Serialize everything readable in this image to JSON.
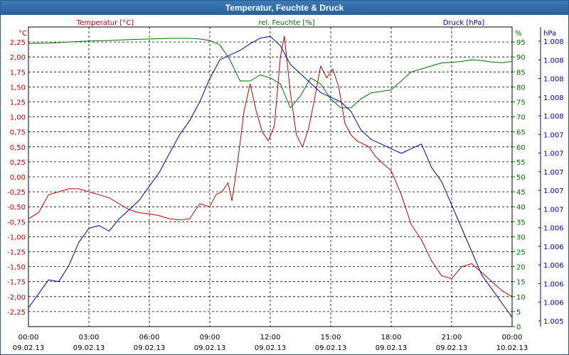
{
  "window": {
    "title": "Temperatur, Feuchte & Druck"
  },
  "colors": {
    "temperature": "#c00000",
    "humidity": "#007000",
    "pressure": "#0000b0",
    "grid": "#000000",
    "axis": "#000000"
  },
  "chart_data": {
    "type": "line",
    "title": "Temperatur, Feuchte & Druck",
    "grid": true,
    "x": {
      "tick_times": [
        "00:00",
        "03:00",
        "06:00",
        "09:00",
        "12:00",
        "15:00",
        "18:00",
        "21:00",
        "00:00"
      ],
      "tick_dates": [
        "09.02.13",
        "09.02.13",
        "09.02.13",
        "09.02.13",
        "09.02.13",
        "09.02.13",
        "09.02.13",
        "09.02.13",
        "10.02.13"
      ],
      "range_hours": [
        0,
        24
      ]
    },
    "axes": {
      "temperature": {
        "label": "Temperatur [°C]",
        "unit": "°C",
        "range": [
          -2.5,
          2.5
        ],
        "ticks": [
          "2,25",
          "2,00",
          "1,75",
          "1,50",
          "1,25",
          "1,00",
          "0,75",
          "0,50",
          "0,25",
          "0,00",
          "-0,25",
          "-0,50",
          "-0,75",
          "-1,00",
          "-1,25",
          "-1,50",
          "-1,75",
          "-2,00",
          "-2,25"
        ]
      },
      "humidity": {
        "label": "rel. Feuchte [%]",
        "unit": "%",
        "range": [
          0,
          100
        ],
        "ticks": [
          "95",
          "90",
          "85",
          "80",
          "75",
          "70",
          "65",
          "60",
          "55",
          "50",
          "45",
          "40",
          "35",
          "30",
          "25",
          "20",
          "15",
          "10",
          "5",
          "0"
        ]
      },
      "pressure": {
        "label": "Druck [hPa]",
        "unit": "hPa",
        "range": [
          1004.9,
          1008.1
        ],
        "ticks": [
          "1.008",
          "1.008",
          "1.008",
          "1.008",
          "1.008",
          "1.007",
          "1.007",
          "1.007",
          "1.007",
          "1.007",
          "1.006",
          "1.006",
          "1.006",
          "1.006",
          "1.006",
          "1.005"
        ]
      }
    },
    "series": [
      {
        "name": "Temperatur [°C]",
        "axis": "temperature",
        "x_hours": [
          0,
          0.5,
          1,
          1.5,
          2,
          2.5,
          3,
          3.5,
          4,
          4.5,
          5,
          5.5,
          6,
          6.5,
          7,
          7.5,
          8,
          8.5,
          9,
          9.3,
          9.6,
          9.9,
          10.1,
          10.4,
          10.7,
          11,
          11.3,
          11.6,
          11.9,
          12.2,
          12.5,
          12.7,
          13,
          13.3,
          13.6,
          13.9,
          14.2,
          14.5,
          14.8,
          15.1,
          15.4,
          15.7,
          16,
          16.3,
          16.6,
          16.9,
          17.2,
          17.5,
          18,
          18.5,
          19,
          19.5,
          20,
          20.5,
          21,
          21.5,
          22,
          22.5,
          23,
          23.5,
          24
        ],
        "values": [
          -0.7,
          -0.6,
          -0.3,
          -0.25,
          -0.2,
          -0.2,
          -0.25,
          -0.3,
          -0.35,
          -0.45,
          -0.55,
          -0.6,
          -0.62,
          -0.65,
          -0.7,
          -0.72,
          -0.7,
          -0.45,
          -0.5,
          -0.3,
          -0.25,
          -0.1,
          -0.4,
          0.3,
          1.1,
          1.55,
          1.1,
          0.75,
          0.6,
          0.85,
          2.0,
          2.35,
          1.4,
          0.7,
          0.5,
          0.8,
          1.3,
          1.85,
          1.65,
          1.8,
          1.5,
          0.9,
          0.7,
          0.6,
          0.55,
          0.5,
          0.35,
          0.25,
          0.1,
          -0.3,
          -0.8,
          -1.05,
          -1.4,
          -1.65,
          -1.7,
          -1.5,
          -1.45,
          -1.6,
          -1.75,
          -1.9,
          -2.0
        ]
      },
      {
        "name": "rel. Feuchte [%]",
        "axis": "humidity",
        "x_hours": [
          0,
          1,
          2,
          3,
          4,
          5,
          6,
          7,
          8,
          8.5,
          9,
          9.5,
          10,
          10.5,
          11,
          11.5,
          12,
          12.5,
          13,
          13.5,
          14,
          14.5,
          15,
          15.5,
          16,
          16.5,
          17,
          17.5,
          18,
          18.5,
          19,
          19.5,
          20,
          20.5,
          21,
          21.5,
          22,
          22.5,
          23,
          23.5,
          24
        ],
        "values": [
          94.5,
          94.6,
          95.0,
          95.3,
          95.5,
          95.8,
          96.0,
          96.2,
          96.2,
          96.0,
          95.5,
          94.0,
          89.0,
          82.0,
          82.0,
          84.0,
          83.0,
          81.0,
          73.0,
          77.0,
          83.0,
          81.0,
          76.0,
          73.0,
          73.0,
          76.0,
          78.0,
          78.5,
          79.0,
          82.0,
          85.0,
          86.0,
          87.0,
          88.0,
          88.2,
          88.5,
          89.0,
          88.8,
          88.3,
          88.1,
          88.5
        ]
      },
      {
        "name": "Druck [hPa]",
        "axis": "pressure",
        "x_hours": [
          0,
          0.5,
          1,
          1.5,
          2,
          2.5,
          3,
          3.5,
          4,
          4.5,
          5,
          5.5,
          6,
          6.5,
          7,
          7.5,
          8,
          8.5,
          9,
          9.5,
          10,
          10.5,
          11,
          11.5,
          12,
          12.5,
          13,
          13.5,
          14,
          14.5,
          15,
          15.5,
          16,
          16.5,
          17,
          17.5,
          18,
          18.5,
          19,
          19.5,
          20,
          20.5,
          21,
          21.5,
          22,
          22.5,
          23,
          23.5,
          24
        ],
        "values": [
          1005.1,
          1005.25,
          1005.4,
          1005.38,
          1005.55,
          1005.8,
          1005.95,
          1005.98,
          1005.92,
          1006.05,
          1006.15,
          1006.25,
          1006.4,
          1006.55,
          1006.75,
          1006.95,
          1007.1,
          1007.3,
          1007.55,
          1007.75,
          1007.8,
          1007.85,
          1007.92,
          1007.98,
          1008.0,
          1007.9,
          1007.7,
          1007.6,
          1007.5,
          1007.4,
          1007.35,
          1007.3,
          1007.2,
          1007.0,
          1006.9,
          1006.85,
          1006.8,
          1006.75,
          1006.8,
          1006.85,
          1006.6,
          1006.45,
          1006.2,
          1005.95,
          1005.7,
          1005.45,
          1005.3,
          1005.15,
          1005.0
        ]
      }
    ]
  }
}
